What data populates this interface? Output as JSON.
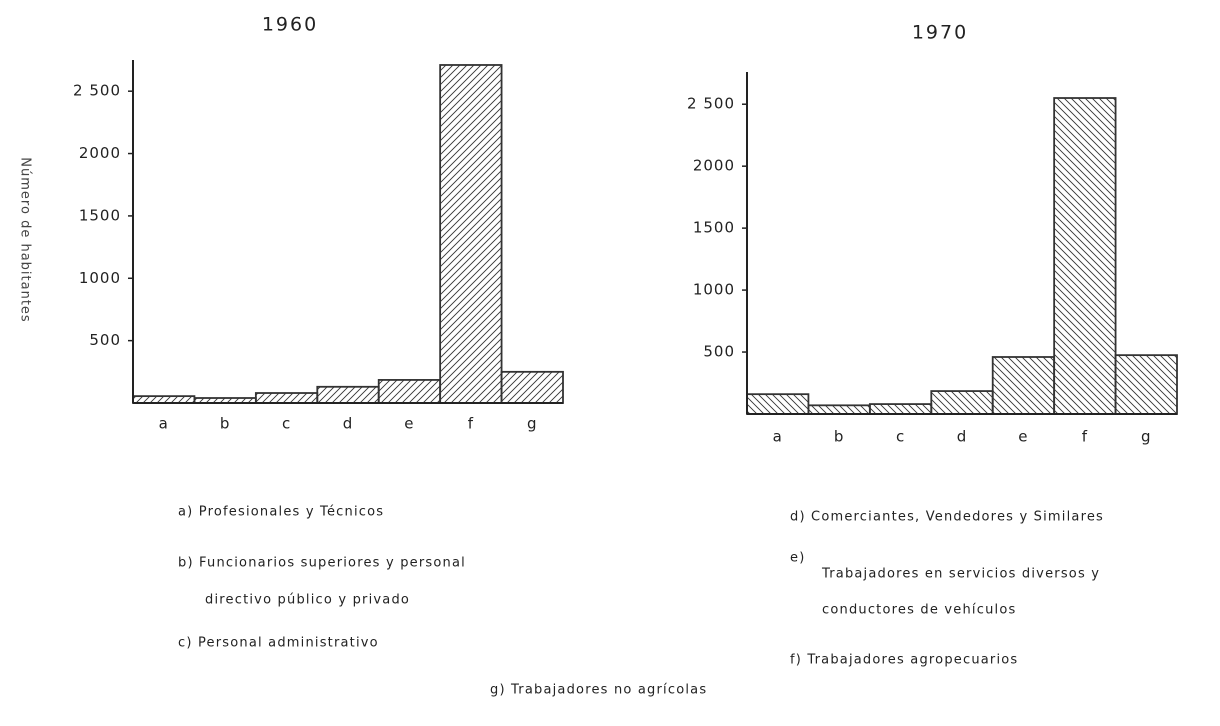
{
  "chart_data": [
    {
      "type": "bar",
      "title": "1960",
      "y_label": "Número de habitantes",
      "categories": [
        "a",
        "b",
        "c",
        "d",
        "e",
        "f",
        "g"
      ],
      "values": [
        55,
        40,
        80,
        130,
        185,
        2710,
        250
      ],
      "color": "#333",
      "hatch": "/",
      "ylim": [
        0,
        2750
      ],
      "yticks": [
        500,
        1000,
        1500,
        2000,
        {
          "value": 2500,
          "label": "2 500"
        }
      ]
    },
    {
      "type": "bar",
      "title": "1970",
      "categories": [
        "a",
        "b",
        "c",
        "d",
        "e",
        "f",
        "g"
      ],
      "values": [
        160,
        70,
        80,
        185,
        460,
        2550,
        475
      ],
      "color": "#333",
      "hatch": "\\",
      "ylim": [
        0,
        2760
      ],
      "yticks": [
        500,
        1000,
        1500,
        2000,
        {
          "value": 2500,
          "label": "2 500"
        }
      ]
    }
  ],
  "notes": [
    "a) Profesionales y Técnicos",
    "b) Funcionarios superiores y personal",
    "directivo público y privado",
    "c) Personal administrativo",
    "d) Comerciantes, Vendedores y Similares",
    "e)",
    "Trabajadores en servicios diversos y",
    "conductores de vehículos",
    "f) Trabajadores agropecuarios",
    "g) Trabajadores no agrícolas"
  ]
}
